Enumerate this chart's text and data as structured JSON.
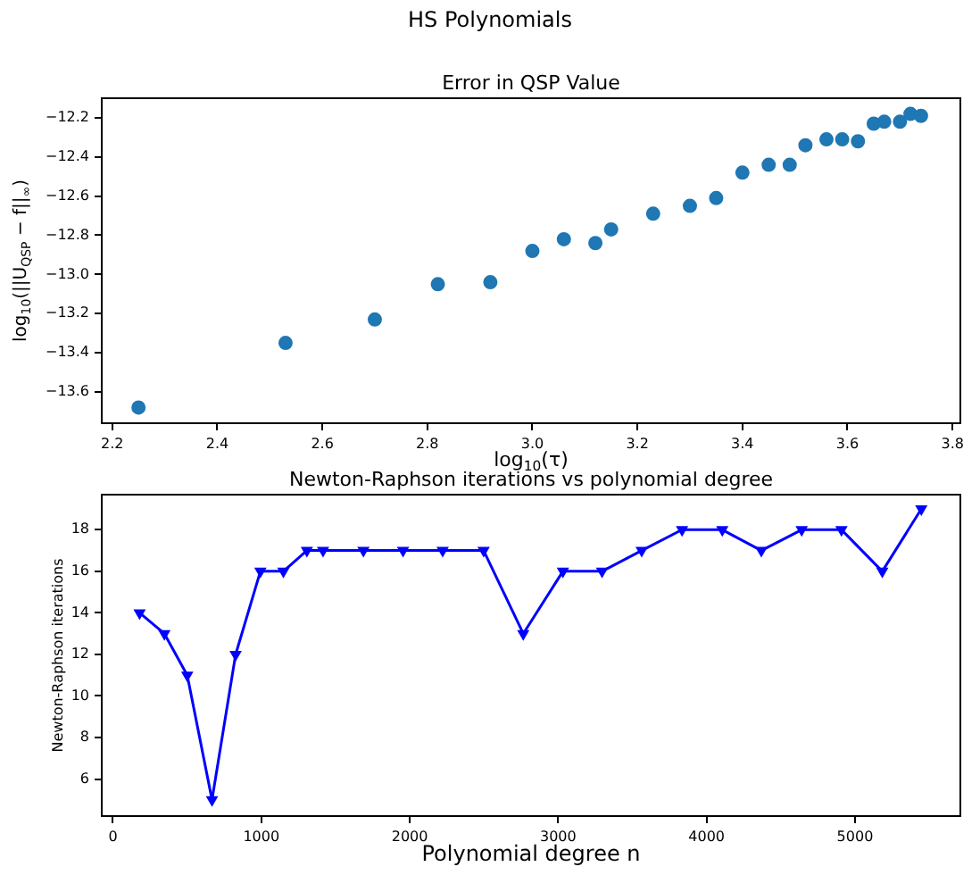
{
  "chart_data": [
    {
      "type": "scatter",
      "title": "HS Polynomials",
      "subtitle": "Error in QSP Value",
      "xlabel": "log$_{10}$(τ)",
      "ylabel": "log$_{10}$(||U$_{QSP}$ − f||$_{∞}$)",
      "marker": "circle",
      "grid": false,
      "x": [
        2.25,
        2.53,
        2.7,
        2.82,
        2.92,
        3.0,
        3.06,
        3.12,
        3.15,
        3.23,
        3.3,
        3.35,
        3.4,
        3.45,
        3.49,
        3.52,
        3.56,
        3.59,
        3.62,
        3.65,
        3.67,
        3.7,
        3.72,
        3.74
      ],
      "series": [
        {
          "color": "#1f77b4",
          "values": [
            -13.68,
            -13.35,
            -13.23,
            -13.05,
            -13.04,
            -12.88,
            -12.82,
            -12.84,
            -12.77,
            -12.69,
            -12.65,
            -12.61,
            -12.48,
            -12.44,
            -12.44,
            -12.34,
            -12.31,
            -12.31,
            -12.32,
            -12.23,
            -12.22,
            -12.22,
            -12.18,
            -12.19
          ]
        }
      ],
      "xlim": [
        2.18,
        3.815
      ],
      "ylim": [
        -13.76,
        -12.1
      ],
      "xticks": [
        {
          "value": 2.2,
          "label": "2.2"
        },
        {
          "value": 2.4,
          "label": "2.4"
        },
        {
          "value": 2.6,
          "label": "2.6"
        },
        {
          "value": 2.8,
          "label": "2.8"
        },
        {
          "value": 3.0,
          "label": "3.0"
        },
        {
          "value": 3.2,
          "label": "3.2"
        },
        {
          "value": 3.4,
          "label": "3.4"
        },
        {
          "value": 3.6,
          "label": "3.6"
        },
        {
          "value": 3.8,
          "label": "3.8"
        }
      ],
      "yticks": [
        {
          "value": -13.6,
          "label": "−13.6"
        },
        {
          "value": -13.4,
          "label": "−13.4"
        },
        {
          "value": -13.2,
          "label": "−13.2"
        },
        {
          "value": -13.0,
          "label": "−13.0"
        },
        {
          "value": -12.8,
          "label": "−12.8"
        },
        {
          "value": -12.6,
          "label": "−12.6"
        },
        {
          "value": -12.4,
          "label": "−12.4"
        },
        {
          "value": -12.2,
          "label": "−12.2"
        }
      ]
    },
    {
      "type": "line",
      "title": "Newton-Raphson iterations vs polynomial degree",
      "xlabel": "Polynomial degree n",
      "ylabel": "Newton-Raphson iterations",
      "marker": "triangle",
      "grid": false,
      "x": [
        180,
        347,
        501,
        668,
        827,
        994,
        1149,
        1307,
        1416,
        1688,
        1955,
        2222,
        2498,
        2765,
        3032,
        3296,
        3563,
        3835,
        4106,
        4369,
        4641,
        4909,
        5184,
        5447
      ],
      "series": [
        {
          "color": "#0000ff",
          "values": [
            14,
            13,
            11,
            5,
            12,
            16,
            16,
            17,
            17,
            17,
            17,
            17,
            17,
            13,
            16,
            16,
            17,
            18,
            18,
            17,
            18,
            18,
            16,
            19
          ]
        }
      ],
      "xlim": [
        -75,
        5710
      ],
      "ylim": [
        4.22,
        19.69
      ],
      "xticks": [
        0,
        1000,
        2000,
        3000,
        4000,
        5000
      ],
      "yticks": [
        6,
        8,
        10,
        12,
        14,
        16,
        18
      ]
    }
  ]
}
